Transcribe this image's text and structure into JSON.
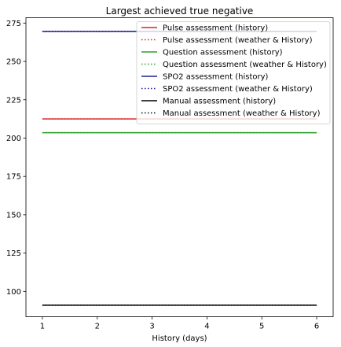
{
  "chart_data": {
    "type": "line",
    "title": "Largest achieved true negative",
    "xlabel": "History (days)",
    "ylabel": "",
    "xlim": [
      0.7,
      6.3
    ],
    "ylim": [
      83.5,
      278.5
    ],
    "xticks": [
      1,
      2,
      3,
      4,
      5,
      6
    ],
    "yticks": [
      100,
      125,
      150,
      175,
      200,
      225,
      250,
      275
    ],
    "x": [
      1,
      2,
      3,
      4,
      5,
      6
    ],
    "grid": false,
    "legend_position": "top-right",
    "series": [
      {
        "name": "Pulse assessment (history)",
        "color": "#d62728",
        "dash": "solid",
        "values": [
          212.5,
          212.5,
          212.5,
          212.5,
          212.5,
          212.5
        ]
      },
      {
        "name": "Pulse assessment (weather & History)",
        "color": "#d62728",
        "dash": "dotted",
        "values": [
          212.5,
          212.5,
          212.5,
          212.5,
          212.5,
          212.5
        ]
      },
      {
        "name": "Question assessment (history)",
        "color": "#2ca02c",
        "dash": "solid",
        "values": [
          203.5,
          203.5,
          203.5,
          203.5,
          203.5,
          203.5
        ]
      },
      {
        "name": "Question assessment (weather & History)",
        "color": "#2ca02c",
        "dash": "dotted",
        "values": [
          203.5,
          203.5,
          203.5,
          203.5,
          203.5,
          203.5
        ]
      },
      {
        "name": "SPO2 assessment (history)",
        "color": "#1f1f9e",
        "dash": "solid",
        "values": [
          269.5,
          269.5,
          269.5,
          269.5,
          269.5,
          269.5
        ]
      },
      {
        "name": "SPO2 assessment (weather & History)",
        "color": "#1f1f9e",
        "dash": "dotted",
        "values": [
          269.5,
          269.5,
          269.5,
          269.5,
          269.5,
          269.5
        ]
      },
      {
        "name": "Manual assessment (history)",
        "color": "#000000",
        "dash": "solid",
        "values": [
          91,
          91,
          91,
          91,
          91,
          91
        ]
      },
      {
        "name": "Manual assessment (weather & History)",
        "color": "#000000",
        "dash": "dotted",
        "values": [
          91,
          91,
          91,
          91,
          91,
          91
        ]
      }
    ]
  }
}
